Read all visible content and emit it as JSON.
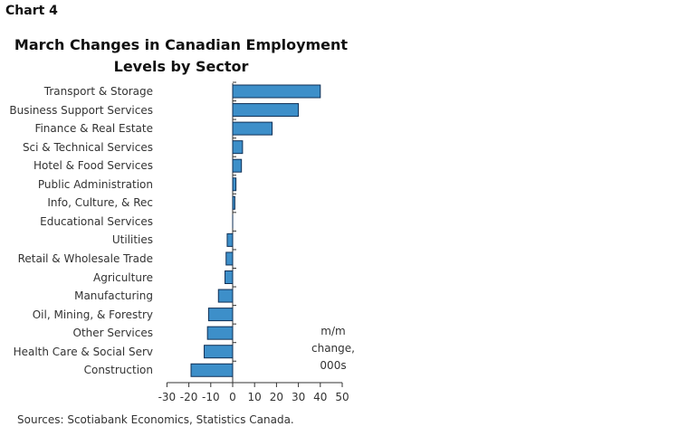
{
  "chart_label": "Chart 4",
  "chart_data": {
    "type": "bar",
    "orientation": "horizontal",
    "title": "March Changes in Canadian Employment Levels by Sector",
    "categories": [
      "Transport & Storage",
      "Business Support Services",
      "Finance & Real Estate",
      "Sci & Technical Services",
      "Hotel & Food Services",
      "Public Administration",
      "Info, Culture, & Rec",
      "Educational Services",
      "Utilities",
      "Retail & Wholesale Trade",
      "Agriculture",
      "Manufacturing",
      "Oil, Mining, & Forestry",
      "Other Services",
      "Health Care & Social Serv",
      "Construction"
    ],
    "values": [
      40,
      30,
      18,
      4.5,
      4,
      1.5,
      1,
      0,
      -2.5,
      -3,
      -3.5,
      -6.5,
      -11,
      -11.5,
      -13,
      -19
    ],
    "xlim": [
      -30,
      50
    ],
    "x_ticks": [
      "-30",
      "-20",
      "-10",
      "0",
      "10",
      "20",
      "30",
      "40",
      "50"
    ],
    "x_tick_values": [
      -30,
      -20,
      -10,
      0,
      10,
      20,
      30,
      40,
      50
    ],
    "unit_note": [
      "m/m",
      "change,",
      "000s"
    ],
    "bar_color": "#3d8fc9",
    "bar_edge_color": "#0f2f55",
    "grid": false,
    "legend": "none"
  },
  "source": "Sources: Scotiabank Economics, Statistics Canada."
}
